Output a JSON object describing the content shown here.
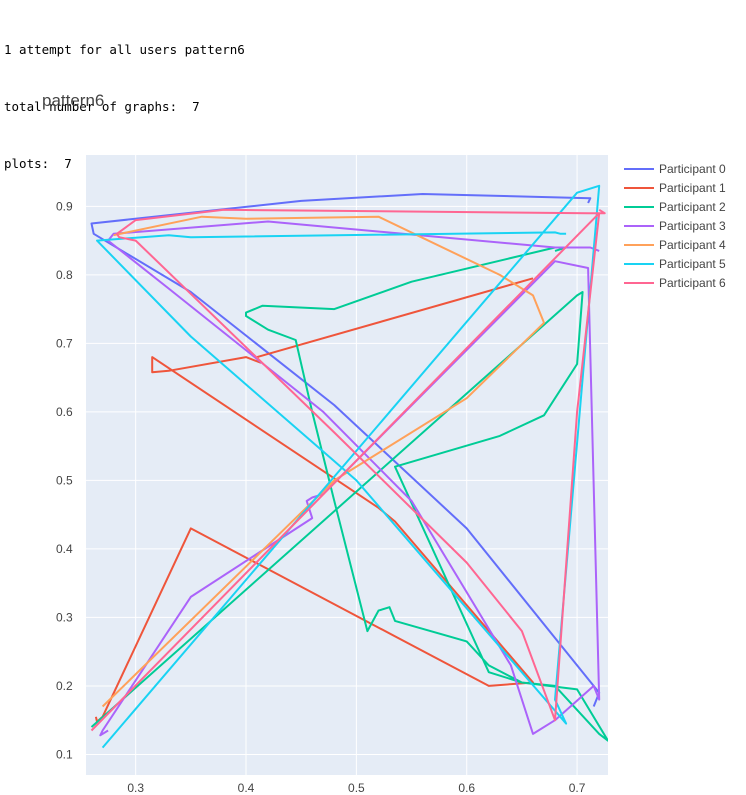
{
  "console": {
    "line1": "1 attempt for all users pattern6",
    "line2": "total number of graphs:  7",
    "line3": "plots:  7"
  },
  "chart_data": {
    "type": "line",
    "title": "pattern6",
    "xlabel": "",
    "ylabel": "",
    "xlim": [
      0.255,
      0.728
    ],
    "ylim": [
      0.07,
      0.975
    ],
    "xticks": [
      0.3,
      0.4,
      0.5,
      0.6,
      0.7
    ],
    "yticks": [
      0.1,
      0.2,
      0.3,
      0.4,
      0.5,
      0.6,
      0.7,
      0.8,
      0.9
    ],
    "grid": true,
    "legend_position": "top-right",
    "plot_background": "#E5ECF6",
    "series": [
      {
        "name": "Participant 0",
        "color": "#636EFA",
        "points": [
          [
            0.71,
            0.905
          ],
          [
            0.712,
            0.912
          ],
          [
            0.56,
            0.918
          ],
          [
            0.45,
            0.908
          ],
          [
            0.26,
            0.875
          ],
          [
            0.262,
            0.86
          ],
          [
            0.35,
            0.775
          ],
          [
            0.48,
            0.61
          ],
          [
            0.6,
            0.43
          ],
          [
            0.72,
            0.19
          ],
          [
            0.715,
            0.17
          ]
        ]
      },
      {
        "name": "Participant 1",
        "color": "#EF553B",
        "points": [
          [
            0.66,
            0.795
          ],
          [
            0.41,
            0.68
          ],
          [
            0.413,
            0.672
          ],
          [
            0.4,
            0.68
          ],
          [
            0.33,
            0.66
          ],
          [
            0.315,
            0.658
          ],
          [
            0.315,
            0.68
          ],
          [
            0.52,
            0.46
          ],
          [
            0.535,
            0.44
          ],
          [
            0.66,
            0.205
          ],
          [
            0.62,
            0.2
          ],
          [
            0.35,
            0.43
          ],
          [
            0.27,
            0.155
          ],
          [
            0.265,
            0.148
          ],
          [
            0.264,
            0.155
          ]
        ]
      },
      {
        "name": "Participant 2",
        "color": "#00CC96",
        "points": [
          [
            0.68,
            0.835
          ],
          [
            0.69,
            0.84
          ],
          [
            0.68,
            0.84
          ],
          [
            0.55,
            0.79
          ],
          [
            0.48,
            0.75
          ],
          [
            0.415,
            0.755
          ],
          [
            0.4,
            0.745
          ],
          [
            0.4,
            0.74
          ],
          [
            0.42,
            0.72
          ],
          [
            0.445,
            0.705
          ],
          [
            0.46,
            0.6
          ],
          [
            0.48,
            0.47
          ],
          [
            0.51,
            0.28
          ],
          [
            0.52,
            0.31
          ],
          [
            0.53,
            0.315
          ],
          [
            0.535,
            0.295
          ],
          [
            0.6,
            0.265
          ],
          [
            0.62,
            0.23
          ],
          [
            0.65,
            0.205
          ],
          [
            0.7,
            0.195
          ],
          [
            0.728,
            0.12
          ],
          [
            0.72,
            0.13
          ],
          [
            0.68,
            0.2
          ],
          [
            0.65,
            0.205
          ],
          [
            0.62,
            0.22
          ],
          [
            0.535,
            0.52
          ],
          [
            0.63,
            0.565
          ],
          [
            0.67,
            0.595
          ],
          [
            0.7,
            0.67
          ],
          [
            0.705,
            0.775
          ],
          [
            0.7,
            0.77
          ],
          [
            0.26,
            0.14
          ]
        ]
      },
      {
        "name": "Participant 3",
        "color": "#AB63FA",
        "points": [
          [
            0.72,
            0.835
          ],
          [
            0.712,
            0.84
          ],
          [
            0.68,
            0.84
          ],
          [
            0.42,
            0.878
          ],
          [
            0.28,
            0.86
          ],
          [
            0.275,
            0.85
          ],
          [
            0.33,
            0.78
          ],
          [
            0.47,
            0.6
          ],
          [
            0.55,
            0.47
          ],
          [
            0.64,
            0.23
          ],
          [
            0.66,
            0.13
          ],
          [
            0.68,
            0.15
          ],
          [
            0.715,
            0.2
          ],
          [
            0.72,
            0.18
          ],
          [
            0.71,
            0.81
          ],
          [
            0.68,
            0.82
          ],
          [
            0.47,
            0.48
          ],
          [
            0.46,
            0.475
          ],
          [
            0.455,
            0.47
          ],
          [
            0.46,
            0.445
          ],
          [
            0.35,
            0.33
          ],
          [
            0.27,
            0.135
          ],
          [
            0.268,
            0.128
          ],
          [
            0.275,
            0.135
          ]
        ]
      },
      {
        "name": "Participant 4",
        "color": "#FFA15A",
        "points": [
          [
            0.28,
            0.858
          ],
          [
            0.36,
            0.885
          ],
          [
            0.4,
            0.882
          ],
          [
            0.52,
            0.885
          ],
          [
            0.63,
            0.8
          ],
          [
            0.66,
            0.77
          ],
          [
            0.67,
            0.73
          ],
          [
            0.6,
            0.62
          ],
          [
            0.48,
            0.5
          ],
          [
            0.27,
            0.17
          ]
        ]
      },
      {
        "name": "Participant 5",
        "color": "#19D3F3",
        "points": [
          [
            0.69,
            0.86
          ],
          [
            0.685,
            0.86
          ],
          [
            0.68,
            0.862
          ],
          [
            0.35,
            0.855
          ],
          [
            0.33,
            0.858
          ],
          [
            0.265,
            0.85
          ],
          [
            0.35,
            0.71
          ],
          [
            0.5,
            0.5
          ],
          [
            0.69,
            0.145
          ],
          [
            0.68,
            0.18
          ],
          [
            0.72,
            0.93
          ],
          [
            0.7,
            0.92
          ],
          [
            0.27,
            0.11
          ]
        ]
      },
      {
        "name": "Participant 6",
        "color": "#FF6692",
        "points": [
          [
            0.72,
            0.895
          ],
          [
            0.725,
            0.89
          ],
          [
            0.71,
            0.89
          ],
          [
            0.38,
            0.895
          ],
          [
            0.3,
            0.88
          ],
          [
            0.283,
            0.86
          ],
          [
            0.285,
            0.855
          ],
          [
            0.3,
            0.85
          ],
          [
            0.48,
            0.57
          ],
          [
            0.6,
            0.38
          ],
          [
            0.65,
            0.28
          ],
          [
            0.68,
            0.15
          ],
          [
            0.7,
            0.6
          ],
          [
            0.72,
            0.89
          ],
          [
            0.26,
            0.135
          ]
        ]
      }
    ]
  }
}
